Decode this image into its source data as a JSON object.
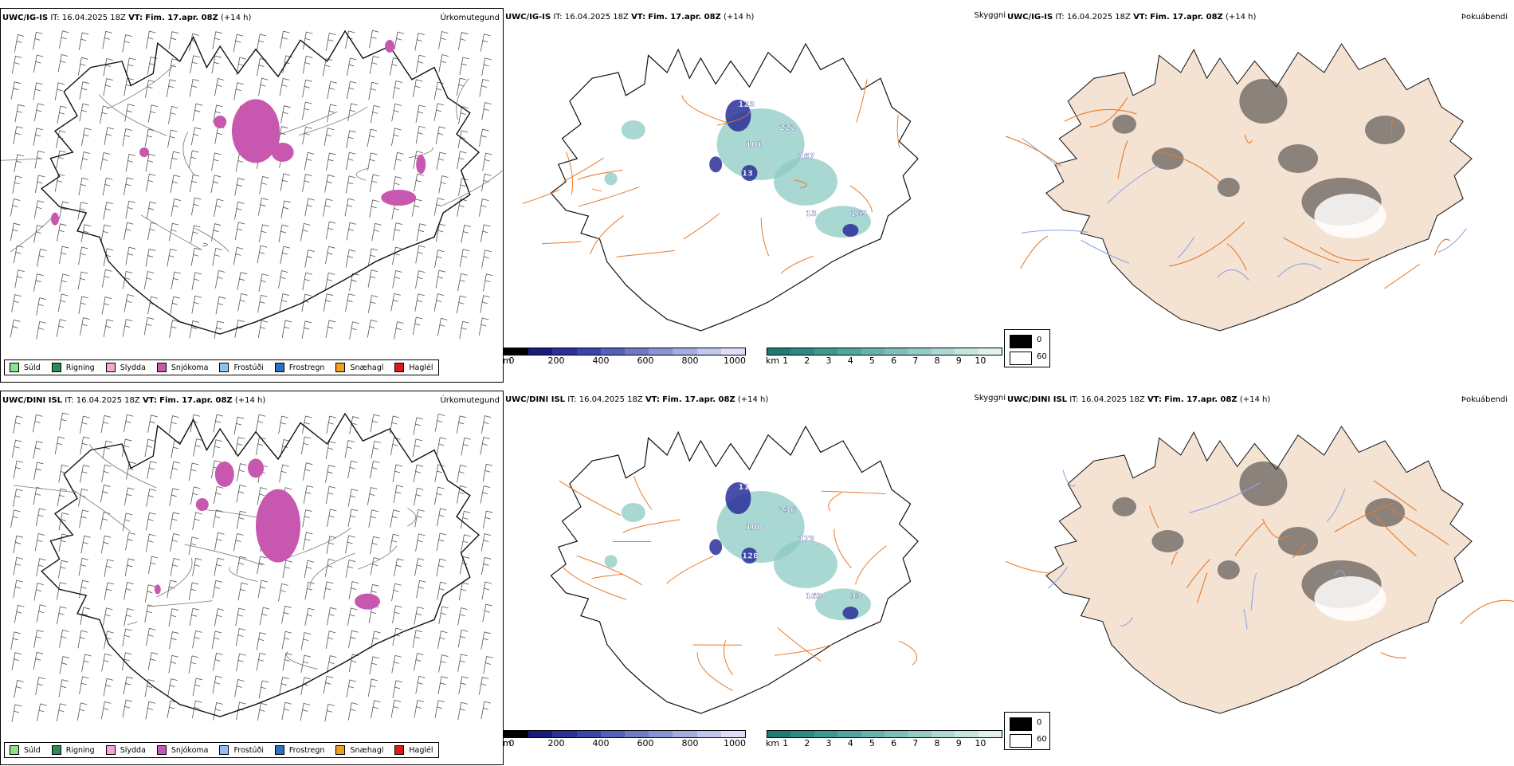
{
  "colors": {
    "snow": "#c857b0",
    "drizzle": "#8fe08f",
    "rain": "#2e8b57",
    "sleet": "#f4a6d8",
    "freezing_drizzle": "#90bff0",
    "freezing_rain": "#2f6fbf",
    "snow_grains": "#f0a020",
    "hail": "#e01818",
    "land_fog": "#f4e2d2",
    "roads": "#e87a2a",
    "rivers": "#8fa6e8"
  },
  "rows": [
    {
      "precip": {
        "model": "UWC/IG-IS",
        "it_label": "IT:",
        "it_value": "16.04.2025 18Z",
        "vt_label": "VT:",
        "vt_value": "Fim. 17.apr. 08Z",
        "lead": "(+14 h)",
        "title": "Úrkomutegund"
      },
      "cloud": {
        "model": "UWC/IG-IS",
        "it_label": "IT:",
        "it_value": "16.04.2025 18Z",
        "vt_label": "VT:",
        "vt_value": "Fim. 17.apr. 08Z",
        "lead": "(+14 h)",
        "title": "Skyggni",
        "labels": [
          "123",
          "222",
          "101",
          "167",
          "13",
          "13",
          "165"
        ]
      },
      "fog": {
        "model": "UWC/IG-IS",
        "it_label": "IT:",
        "it_value": "16.04.2025 18Z",
        "vt_label": "VT:",
        "vt_value": "Fim. 17.apr. 08Z",
        "lead": "(+14 h)",
        "title": "Þokuábendi"
      }
    },
    {
      "precip": {
        "model": "UWC/DINI ISL",
        "it_label": "IT:",
        "it_value": "16.04.2025 18Z",
        "vt_label": "VT:",
        "vt_value": "Fim. 17.apr. 08Z",
        "lead": "(+14 h)",
        "title": "Úrkomutegund"
      },
      "cloud": {
        "model": "UWC/DINI ISL",
        "it_label": "IT:",
        "it_value": "16.04.2025 18Z",
        "vt_label": "VT:",
        "vt_value": "Fim. 17.apr. 08Z",
        "lead": "(+14 h)",
        "title": "Skyggni",
        "labels": [
          "11",
          "236",
          "100",
          "173",
          "128",
          "163",
          "33"
        ]
      },
      "fog": {
        "model": "UWC/DINI ISL",
        "it_label": "IT:",
        "it_value": "16.04.2025 18Z",
        "vt_label": "VT:",
        "vt_value": "Fim. 17.apr. 08Z",
        "lead": "(+14 h)",
        "title": "Þokuábendi"
      }
    }
  ],
  "precip_legend": [
    {
      "label": "Súld",
      "color": "#8fe08f"
    },
    {
      "label": "Rigning",
      "color": "#2e8b57"
    },
    {
      "label": "Slydda",
      "color": "#f4a6d8"
    },
    {
      "label": "Snjókoma",
      "color": "#c857b0"
    },
    {
      "label": "Frostúði",
      "color": "#90bff0"
    },
    {
      "label": "Frostregn",
      "color": "#2f6fbf"
    },
    {
      "label": "Snæhagl",
      "color": "#f0a020"
    },
    {
      "label": "Haglél",
      "color": "#e01818"
    }
  ],
  "cloud_base_scale": {
    "unit": "m",
    "ticks": [
      "0",
      "200",
      "400",
      "600",
      "800",
      "1000"
    ],
    "colors": [
      "#000000",
      "#1a1a7a",
      "#2a2f9a",
      "#3b44aa",
      "#5560b8",
      "#6f79c6",
      "#8a93d2",
      "#a6acde",
      "#c2c6ea",
      "#dcdff5"
    ]
  },
  "visibility_scale": {
    "unit": "km",
    "ticks": [
      "1",
      "2",
      "3",
      "4",
      "5",
      "6",
      "7",
      "8",
      "9",
      "10"
    ],
    "colors": [
      "#1f7a72",
      "#2d8a82",
      "#3c9990",
      "#50a69e",
      "#67b3ab",
      "#7ebfb8",
      "#95cbc5",
      "#adD8d3",
      "#c6e4e0",
      "#e1f1ef"
    ]
  },
  "fog_legend": [
    {
      "label": "0",
      "color": "#000000"
    },
    {
      "label": "60",
      "color": "#ffffff"
    }
  ]
}
